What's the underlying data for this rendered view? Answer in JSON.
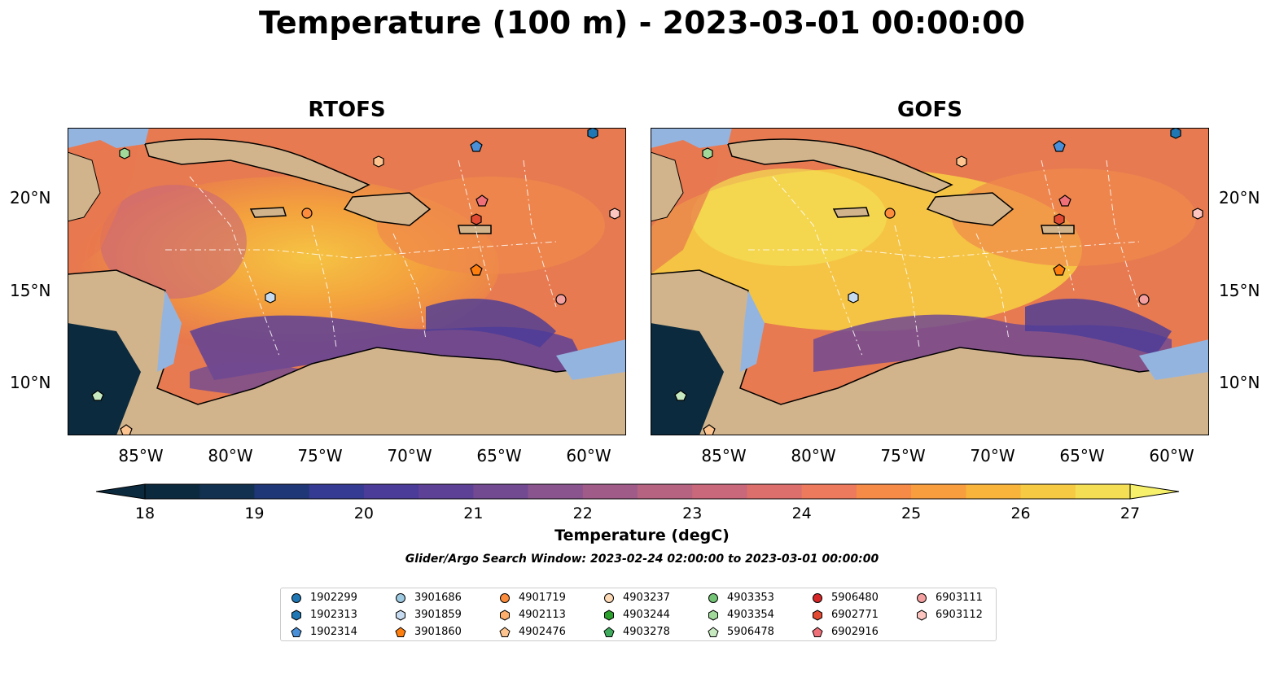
{
  "title": "Temperature (100 m) - 2023-03-01 00:00:00",
  "panels": [
    {
      "name": "RTOFS"
    },
    {
      "name": "GOFS"
    }
  ],
  "lat_labels": [
    "20°N",
    "15°N",
    "10°N"
  ],
  "lon_labels": [
    "85°W",
    "80°W",
    "75°W",
    "70°W",
    "65°W",
    "60°W"
  ],
  "colorbar": {
    "ticks": [
      "18",
      "19",
      "20",
      "21",
      "22",
      "23",
      "24",
      "25",
      "26",
      "27"
    ],
    "label": "Temperature (degC)",
    "colors": [
      "#0b2a3e",
      "#12304f",
      "#1f3777",
      "#353a92",
      "#4a3c98",
      "#5d4196",
      "#714a92",
      "#8a548e",
      "#a05b88",
      "#b56380",
      "#c9687a",
      "#dc6f6c",
      "#ed7a5c",
      "#f68a47",
      "#f99e3e",
      "#f8b43b",
      "#f6ca42",
      "#f3de54"
    ]
  },
  "search_window": "Glider/Argo Search Window: 2023-02-24 02:00:00 to 2023-03-01 00:00:00",
  "legend": [
    {
      "id": "1902299",
      "color": "#1f77b4",
      "shape": "circle"
    },
    {
      "id": "1902313",
      "color": "#1f77b4",
      "shape": "hexagon"
    },
    {
      "id": "1902314",
      "color": "#4a90d9",
      "shape": "pentagon"
    },
    {
      "id": "3901686",
      "color": "#9ecae1",
      "shape": "circle"
    },
    {
      "id": "3901859",
      "color": "#c6dbef",
      "shape": "hexagon"
    },
    {
      "id": "3901860",
      "color": "#ff7f0e",
      "shape": "pentagon"
    },
    {
      "id": "4901719",
      "color": "#fd8d3c",
      "shape": "circle"
    },
    {
      "id": "4902113",
      "color": "#fdae6b",
      "shape": "hexagon"
    },
    {
      "id": "4902476",
      "color": "#fdc48f",
      "shape": "pentagon"
    },
    {
      "id": "4903237",
      "color": "#fdd9b5",
      "shape": "circle"
    },
    {
      "id": "4903244",
      "color": "#2ca02c",
      "shape": "hexagon"
    },
    {
      "id": "4903278",
      "color": "#41ab5d",
      "shape": "pentagon"
    },
    {
      "id": "4903353",
      "color": "#74c476",
      "shape": "circle"
    },
    {
      "id": "4903354",
      "color": "#a1d99b",
      "shape": "hexagon"
    },
    {
      "id": "5906478",
      "color": "#c7e9c0",
      "shape": "pentagon"
    },
    {
      "id": "5906480",
      "color": "#d62728",
      "shape": "circle"
    },
    {
      "id": "6902771",
      "color": "#e34a33",
      "shape": "hexagon"
    },
    {
      "id": "6902916",
      "color": "#f0707a",
      "shape": "pentagon"
    },
    {
      "id": "6903111",
      "color": "#f4a0a0",
      "shape": "circle"
    },
    {
      "id": "6903112",
      "color": "#fcc5c0",
      "shape": "hexagon"
    }
  ]
}
